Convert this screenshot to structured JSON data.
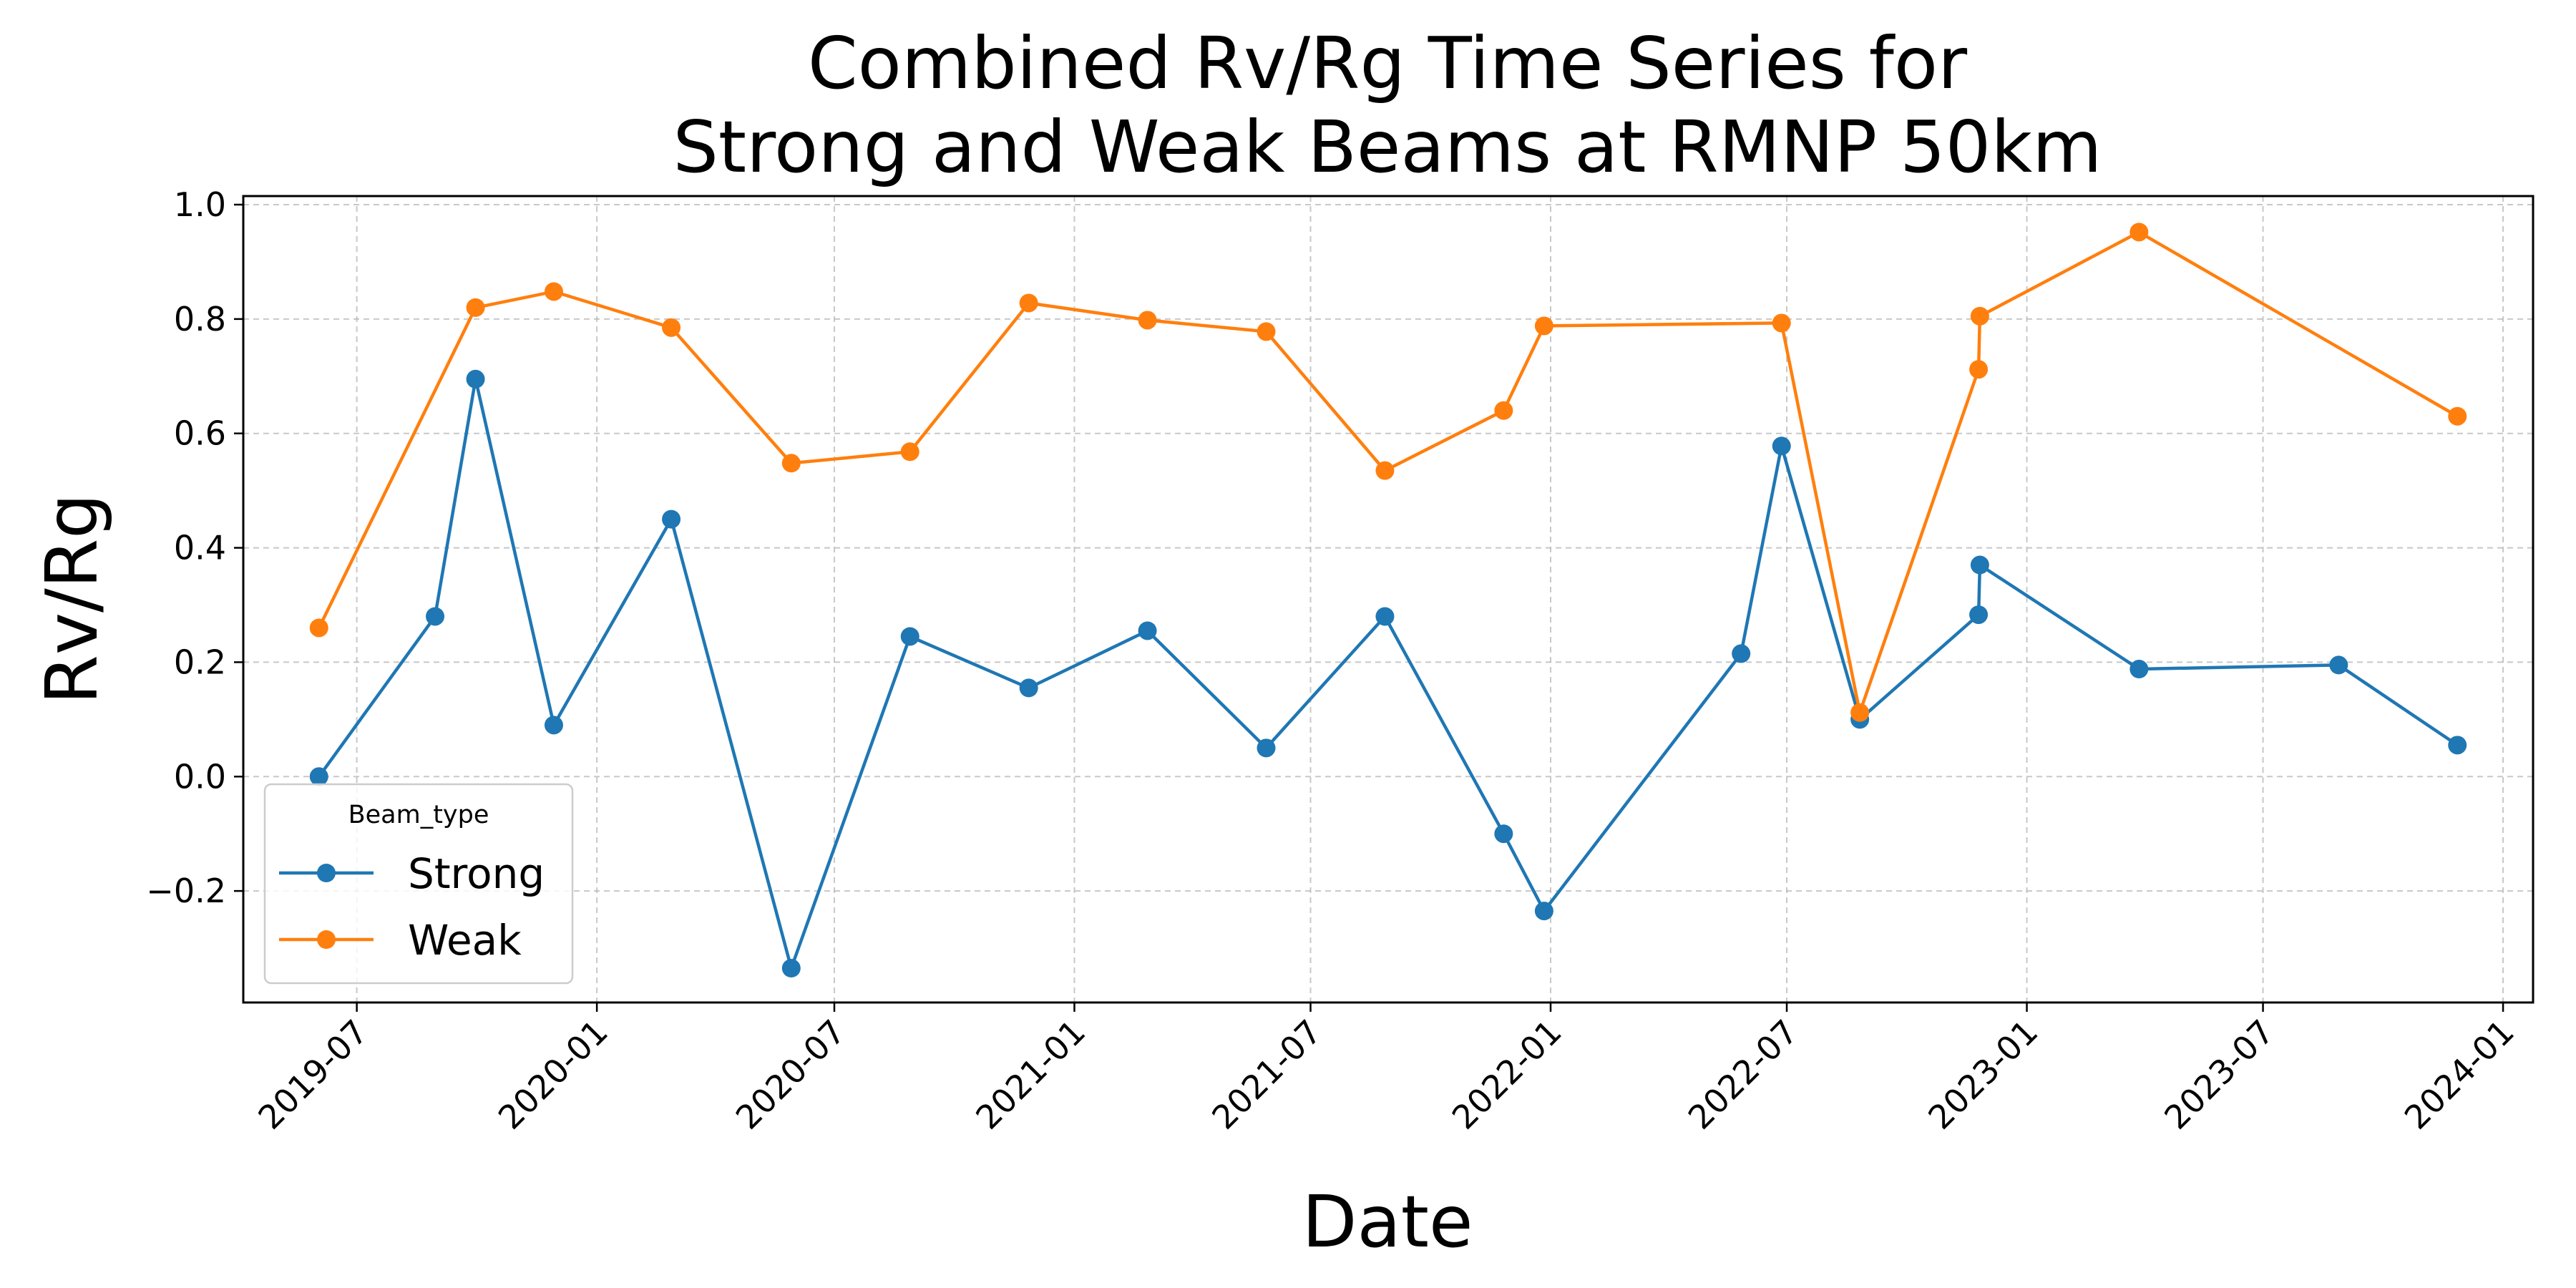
{
  "chart_data": {
    "type": "line",
    "title": [
      "Combined Rv/Rg Time Series for",
      "Strong and Weak Beams at RMNP 50km"
    ],
    "xlabel": "Date",
    "ylabel": "Rv/Rg",
    "xlim": [
      "2019-04-05",
      "2024-01-24"
    ],
    "ylim": [
      -0.395,
      1.015
    ],
    "x_ticks": [
      "2019-07-01",
      "2020-01-01",
      "2020-07-01",
      "2021-01-01",
      "2021-07-01",
      "2022-01-01",
      "2022-07-01",
      "2023-01-01",
      "2023-07-01",
      "2024-01-01"
    ],
    "x_tick_labels": [
      "2019-07",
      "2020-01",
      "2020-07",
      "2021-01",
      "2021-07",
      "2022-01",
      "2022-07",
      "2023-01",
      "2023-07",
      "2024-01"
    ],
    "y_ticks": [
      -0.2,
      0.0,
      0.2,
      0.4,
      0.6,
      0.8,
      1.0
    ],
    "y_tick_labels": [
      "−0.2",
      "0.0",
      "0.2",
      "0.4",
      "0.6",
      "0.8",
      "1.0"
    ],
    "grid": true,
    "legend": {
      "title": "Beam_type",
      "position": "lower-left"
    },
    "series": [
      {
        "name": "Strong",
        "color": "#1f77b4",
        "points": [
          {
            "x": "2019-06-02",
            "y": 0.0
          },
          {
            "x": "2019-08-30",
            "y": 0.28
          },
          {
            "x": "2019-09-30",
            "y": 0.695
          },
          {
            "x": "2019-11-29",
            "y": 0.09
          },
          {
            "x": "2020-02-27",
            "y": 0.45
          },
          {
            "x": "2020-05-29",
            "y": -0.335
          },
          {
            "x": "2020-08-28",
            "y": 0.245
          },
          {
            "x": "2020-11-27",
            "y": 0.155
          },
          {
            "x": "2021-02-26",
            "y": 0.255
          },
          {
            "x": "2021-05-28",
            "y": 0.05
          },
          {
            "x": "2021-08-27",
            "y": 0.28
          },
          {
            "x": "2021-11-26",
            "y": -0.1
          },
          {
            "x": "2021-12-27",
            "y": -0.235
          },
          {
            "x": "2022-05-27",
            "y": 0.215
          },
          {
            "x": "2022-06-27",
            "y": 0.578
          },
          {
            "x": "2022-08-26",
            "y": 0.1
          },
          {
            "x": "2022-11-25",
            "y": 0.283
          },
          {
            "x": "2022-11-26",
            "y": 0.37
          },
          {
            "x": "2023-03-28",
            "y": 0.188
          },
          {
            "x": "2023-08-28",
            "y": 0.195
          },
          {
            "x": "2023-11-27",
            "y": 0.055
          }
        ]
      },
      {
        "name": "Weak",
        "color": "#ff7f0e",
        "points": [
          {
            "x": "2019-06-02",
            "y": 0.26
          },
          {
            "x": "2019-09-30",
            "y": 0.82
          },
          {
            "x": "2019-11-29",
            "y": 0.848
          },
          {
            "x": "2020-02-27",
            "y": 0.785
          },
          {
            "x": "2020-05-29",
            "y": 0.548
          },
          {
            "x": "2020-08-28",
            "y": 0.568
          },
          {
            "x": "2020-11-27",
            "y": 0.828
          },
          {
            "x": "2021-02-26",
            "y": 0.798
          },
          {
            "x": "2021-05-28",
            "y": 0.778
          },
          {
            "x": "2021-08-27",
            "y": 0.535
          },
          {
            "x": "2021-11-26",
            "y": 0.64
          },
          {
            "x": "2021-12-27",
            "y": 0.788
          },
          {
            "x": "2022-06-27",
            "y": 0.793
          },
          {
            "x": "2022-08-26",
            "y": 0.112
          },
          {
            "x": "2022-11-25",
            "y": 0.712
          },
          {
            "x": "2022-11-26",
            "y": 0.805
          },
          {
            "x": "2023-03-28",
            "y": 0.952
          },
          {
            "x": "2023-11-27",
            "y": 0.63
          }
        ]
      }
    ]
  }
}
